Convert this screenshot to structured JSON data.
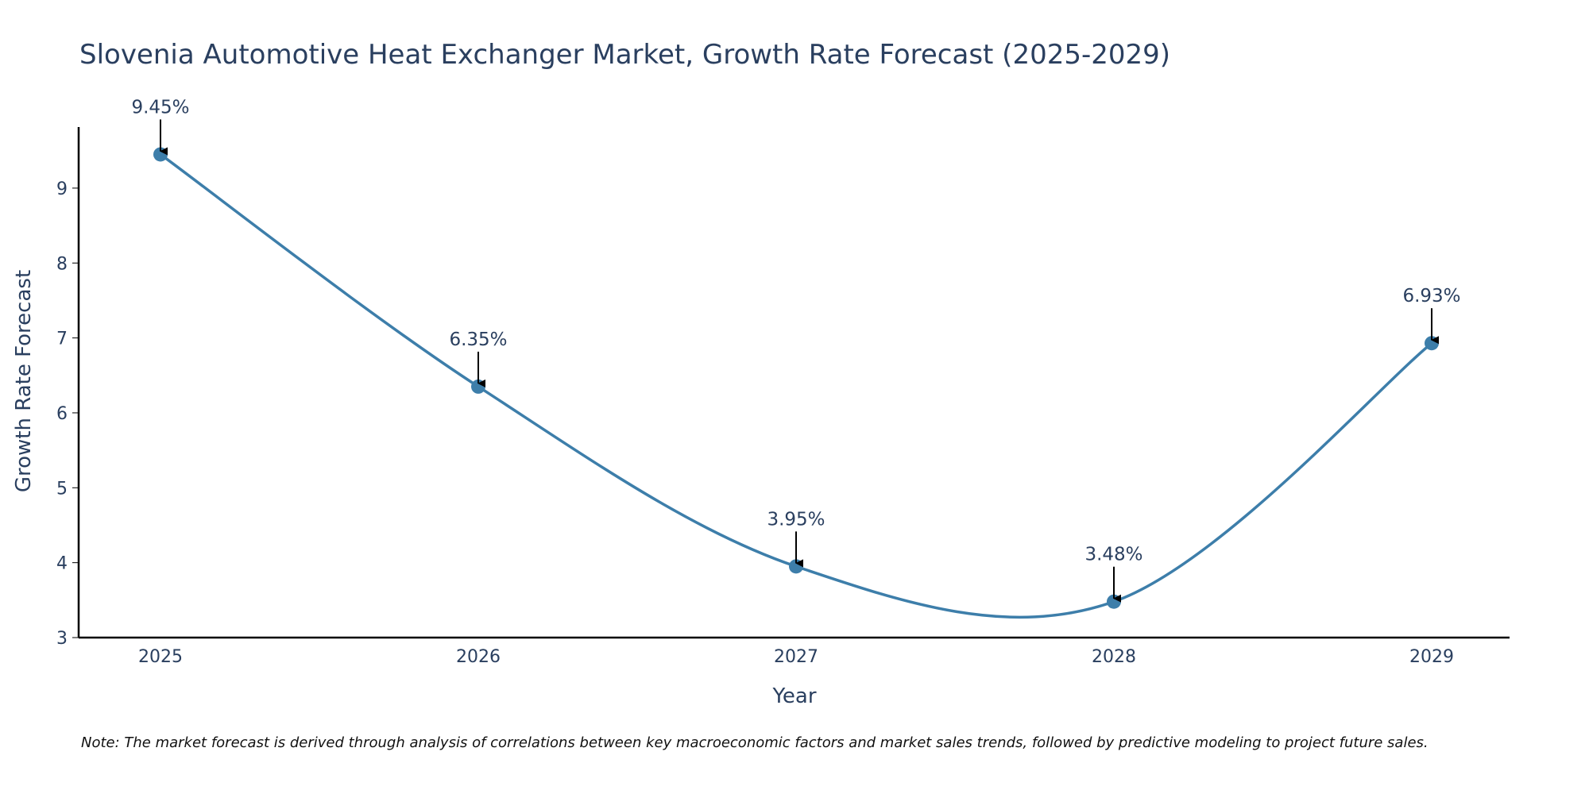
{
  "chart_data": {
    "type": "line",
    "title": "Slovenia Automotive Heat Exchanger Market, Growth Rate Forecast (2025-2029)",
    "xlabel": "Year",
    "ylabel": "Growth Rate Forecast",
    "categories": [
      "2025",
      "2026",
      "2027",
      "2028",
      "2029"
    ],
    "series": [
      {
        "name": "Growth Rate Forecast",
        "values": [
          9.45,
          6.35,
          3.95,
          3.48,
          6.93
        ],
        "labels": [
          "9.45%",
          "6.35%",
          "3.95%",
          "3.48%",
          "6.93%"
        ]
      }
    ],
    "yticks": [
      "3",
      "4",
      "5",
      "6",
      "7",
      "8",
      "9"
    ],
    "ylim": [
      3,
      9.9
    ],
    "line_color": "#3d7eaa",
    "marker_color": "#3d7eaa",
    "arrow_color": "#000000",
    "grid": false,
    "note": "Note: The market forecast is derived through analysis of correlations between key macroeconomic factors and market sales trends, followed by predictive modeling to project future sales."
  }
}
